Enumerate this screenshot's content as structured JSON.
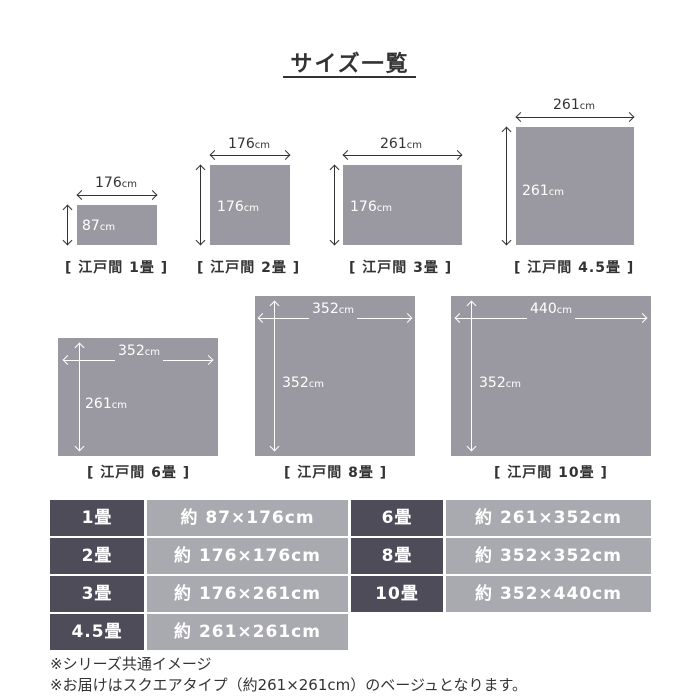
{
  "title": "サイズ一覧",
  "unit": "cm",
  "diagrams": [
    {
      "name": "[ 江戸間 1畳 ]",
      "width": "176",
      "height": "87"
    },
    {
      "name": "[ 江戸間 2畳 ]",
      "width": "176",
      "height": "176"
    },
    {
      "name": "[ 江戸間 3畳 ]",
      "width": "261",
      "height": "176"
    },
    {
      "name": "[ 江戸間 4.5畳 ]",
      "width": "261",
      "height": "261"
    },
    {
      "name": "[ 江戸間 6畳 ]",
      "width": "352",
      "height": "261"
    },
    {
      "name": "[ 江戸間 8畳 ]",
      "width": "352",
      "height": "352"
    },
    {
      "name": "[ 江戸間 10畳 ]",
      "width": "440",
      "height": "352"
    }
  ],
  "table": [
    {
      "size": "1畳",
      "dims": "約 87×176cm"
    },
    {
      "size": "2畳",
      "dims": "約 176×176cm"
    },
    {
      "size": "3畳",
      "dims": "約 176×261cm"
    },
    {
      "size": "4.5畳",
      "dims": "約 261×261cm"
    },
    {
      "size": "6畳",
      "dims": "約 261×352cm"
    },
    {
      "size": "8畳",
      "dims": "約 352×352cm"
    },
    {
      "size": "10畳",
      "dims": "約 352×440cm"
    }
  ],
  "notes": [
    "※シリーズ共通イメージ",
    "※お届けはスクエアタイプ（約261×261cm）のベージュとなります。"
  ]
}
